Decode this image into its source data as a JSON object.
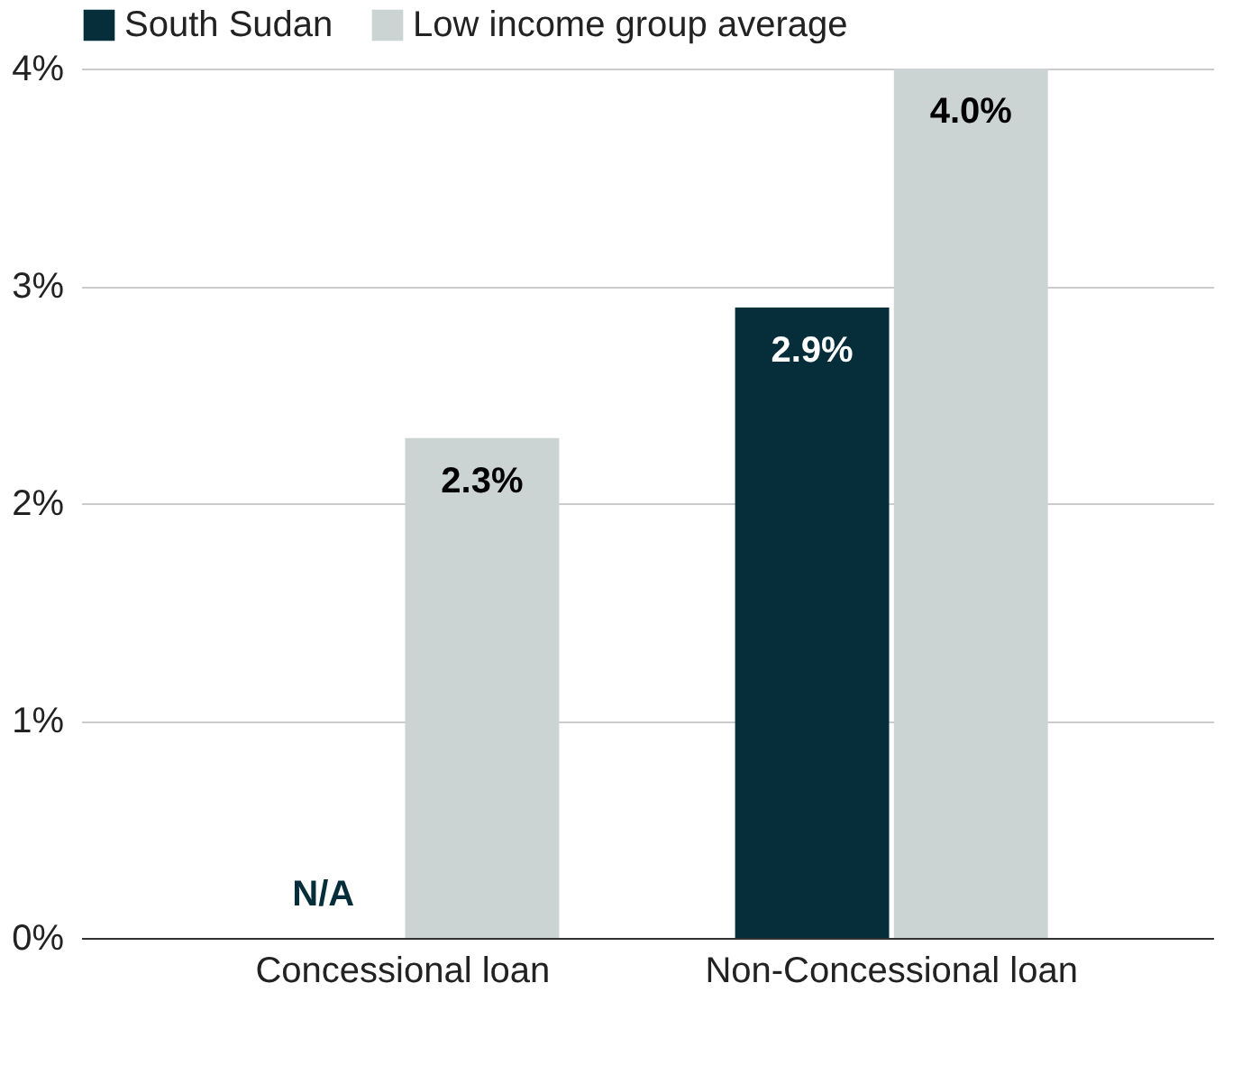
{
  "chart_data": {
    "type": "bar",
    "categories": [
      "Concessional loan",
      "Non-Concessional loan"
    ],
    "series": [
      {
        "name": "South Sudan",
        "color": "#062e3a",
        "values": [
          null,
          2.9
        ],
        "value_labels": [
          "N/A",
          "2.9%"
        ]
      },
      {
        "name": "Low income group average",
        "color": "#ccd3d3",
        "values": [
          2.3,
          4.0
        ],
        "value_labels": [
          "2.3%",
          "4.0%"
        ]
      }
    ],
    "ylim": [
      0,
      4
    ],
    "yticks": [
      {
        "value": 0,
        "label": "0%"
      },
      {
        "value": 1,
        "label": "1%"
      },
      {
        "value": 2,
        "label": "2%"
      },
      {
        "value": 3,
        "label": "3%"
      },
      {
        "value": 4,
        "label": "4%"
      }
    ],
    "grid": "y",
    "legend": "top left"
  }
}
